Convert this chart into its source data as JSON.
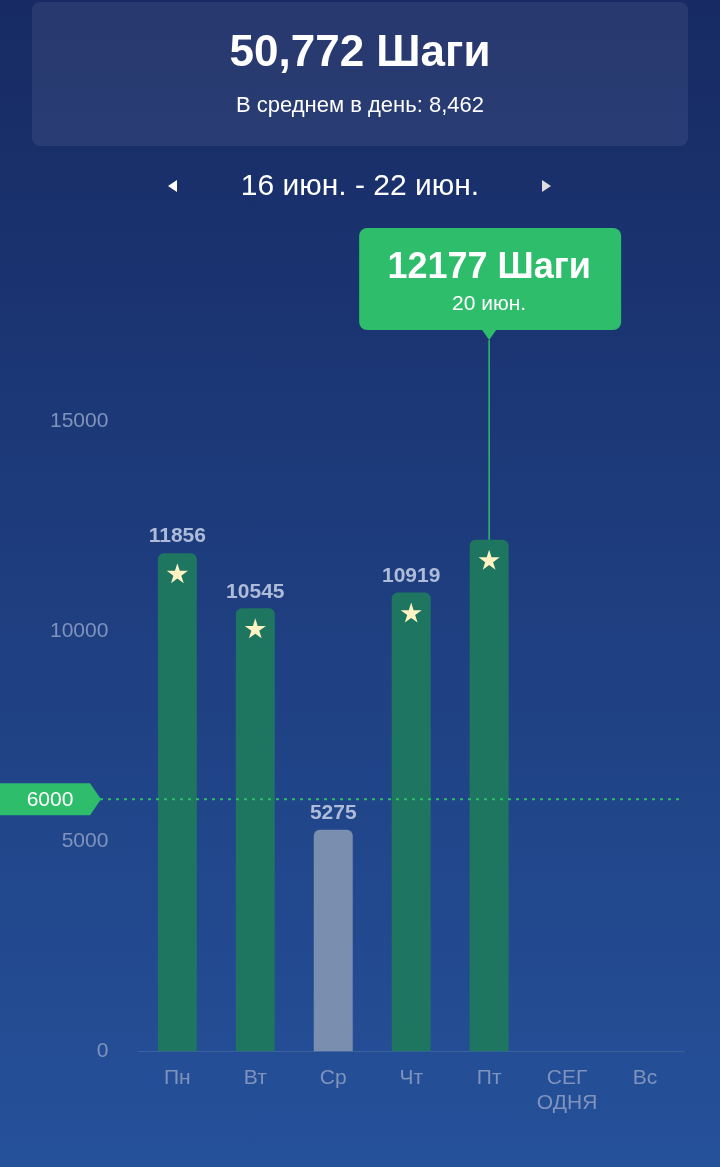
{
  "chart_data": {
    "type": "bar",
    "title": "50,772 Шаги",
    "subtitle": "В среднем в день:  8,462",
    "categories": [
      "Пн",
      "Вт",
      "Ср",
      "Чт",
      "Пт",
      "СЕГ\nОДНЯ",
      "Вс"
    ],
    "values": [
      11856,
      10545,
      5275,
      10919,
      12177,
      null,
      null
    ],
    "colors": [
      "#1e7560",
      "#1e7560",
      "#7a8fb0",
      "#1e7560",
      "#1e7560",
      "#1e7560",
      "#1e7560"
    ],
    "value_labels": [
      "11856",
      "10545",
      "5275",
      "10919",
      null,
      null,
      null
    ],
    "ylim": [
      0,
      15000
    ],
    "yticks": [
      0,
      5000,
      10000,
      15000
    ],
    "grid": false,
    "ref_lines": [
      {
        "axis": "y",
        "value": 6000,
        "label": "6000",
        "color": "#2ebd6b",
        "line_style": "dotted"
      }
    ],
    "annotations": [
      "12177 Шаги",
      "20 июн.",
      "16 июн. - 22 июн."
    ]
  }
}
